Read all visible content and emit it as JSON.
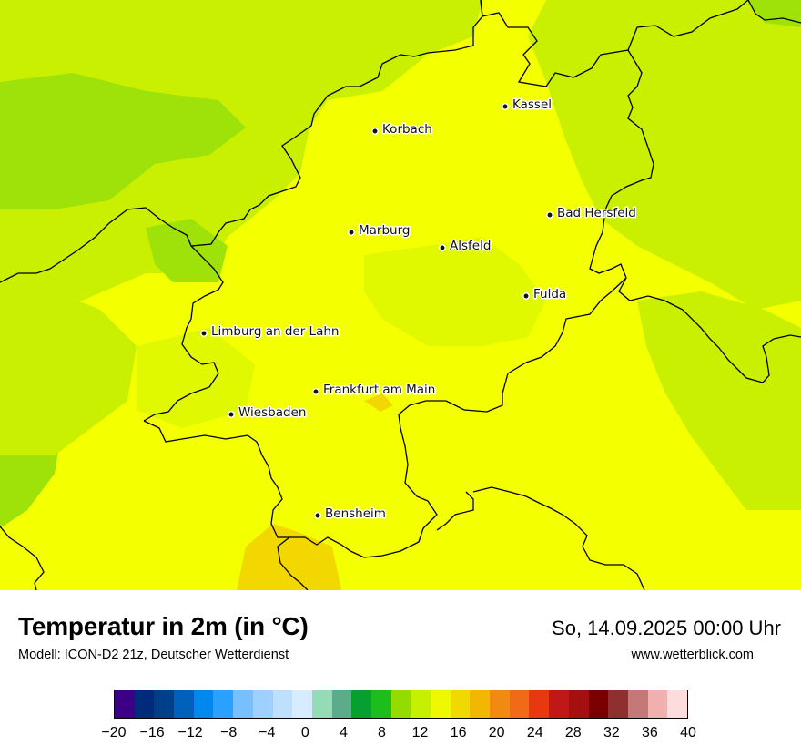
{
  "map": {
    "colors": {
      "lime_dark": "#9ee20a",
      "lime": "#c8f000",
      "yellow_lime": "#e0f800",
      "yellow": "#f4ff00",
      "gold": "#f2d800",
      "border": "#000000"
    },
    "cities": [
      {
        "name": "Kassel"
      },
      {
        "name": "Korbach"
      },
      {
        "name": "Bad Hersfeld"
      },
      {
        "name": "Marburg"
      },
      {
        "name": "Alsfeld"
      },
      {
        "name": "Fulda"
      },
      {
        "name": "Limburg an der Lahn"
      },
      {
        "name": "Frankfurt am Main"
      },
      {
        "name": "Wiesbaden"
      },
      {
        "name": "Bensheim"
      }
    ]
  },
  "header": {
    "title": "Temperatur in 2m (in °C)",
    "subtitle": "Modell: ICON-D2 21z, Deutscher Wetterdienst",
    "datetime": "So, 14.09.2025 00:00 Uhr",
    "website": "www.wetterblick.com"
  },
  "legend": {
    "colors": [
      "#3b0085",
      "#002a7a",
      "#003f8a",
      "#0060bb",
      "#0088ee",
      "#2aa0ff",
      "#78bfff",
      "#9fd0ff",
      "#bde0ff",
      "#d8ecff",
      "#94dcb6",
      "#5cac8c",
      "#06a030",
      "#1cbd1c",
      "#94dc00",
      "#c6f000",
      "#eef800",
      "#f0d800",
      "#f2b800",
      "#f08a10",
      "#f06a18",
      "#e83810",
      "#c01818",
      "#a41010",
      "#780000",
      "#8e3030",
      "#c47878",
      "#f0b0b0",
      "#fcdcdc"
    ],
    "tick_labels": [
      "−20",
      "−16",
      "−12",
      "−8",
      "−4",
      "0",
      "4",
      "8",
      "12",
      "16",
      "20",
      "24",
      "28",
      "32",
      "36",
      "40"
    ],
    "min": -20,
    "max": 40
  }
}
